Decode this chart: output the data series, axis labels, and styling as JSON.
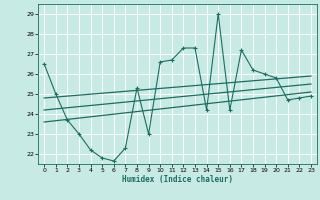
{
  "xlabel": "Humidex (Indice chaleur)",
  "background_color": "#c8eae5",
  "grid_color": "#ffffff",
  "line_color": "#1a6e62",
  "xlim": [
    -0.5,
    23.5
  ],
  "ylim": [
    21.5,
    29.5
  ],
  "xticks": [
    0,
    1,
    2,
    3,
    4,
    5,
    6,
    7,
    8,
    9,
    10,
    11,
    12,
    13,
    14,
    15,
    16,
    17,
    18,
    19,
    20,
    21,
    22,
    23
  ],
  "yticks": [
    22,
    23,
    24,
    25,
    26,
    27,
    28,
    29
  ],
  "main_data_x": [
    0,
    1,
    2,
    3,
    4,
    5,
    6,
    7,
    8,
    9,
    10,
    11,
    12,
    13,
    14,
    15,
    16,
    17,
    18,
    19,
    20,
    21,
    22,
    23
  ],
  "main_data_y": [
    26.5,
    25.0,
    23.7,
    23.0,
    22.2,
    21.8,
    21.65,
    22.3,
    25.3,
    23.0,
    26.6,
    26.7,
    27.3,
    27.3,
    24.2,
    29.0,
    24.2,
    27.2,
    26.2,
    26.0,
    25.8,
    24.7,
    24.8,
    24.9
  ],
  "reg_line1_x": [
    0,
    23
  ],
  "reg_line1_y": [
    24.8,
    25.9
  ],
  "reg_line2_x": [
    0,
    23
  ],
  "reg_line2_y": [
    23.6,
    25.1
  ],
  "reg_line3_x": [
    0,
    23
  ],
  "reg_line3_y": [
    24.2,
    25.5
  ]
}
